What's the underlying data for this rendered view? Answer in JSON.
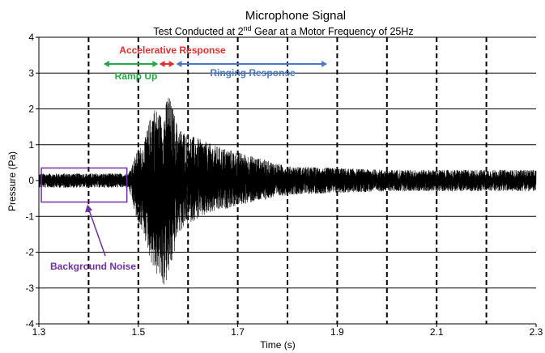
{
  "chart_data": {
    "type": "line",
    "title": "Microphone Signal",
    "subtitle_parts": [
      "Test Conducted at 2",
      "nd",
      " Gear at a Motor Frequency of 25Hz"
    ],
    "xlabel": "Time (s)",
    "ylabel": "Pressure (Pa)",
    "xlim": [
      1.3,
      2.3
    ],
    "ylim": [
      -4,
      4
    ],
    "x_ticks": [
      1.3,
      1.5,
      1.7,
      1.9,
      2.1,
      2.3
    ],
    "x_tick_labels": [
      "1.3",
      "1.5",
      "1.7",
      "1.9",
      "2.1",
      "2.3"
    ],
    "y_ticks": [
      4,
      3,
      2,
      1,
      0,
      -1,
      -2,
      -3,
      -4
    ],
    "y_tick_labels": [
      "4",
      "3",
      "2",
      "1",
      "0",
      "-1",
      "-2",
      "-3",
      "-4"
    ],
    "vertical_gridlines": [
      1.4,
      1.5,
      1.6,
      1.7,
      1.8,
      1.9,
      2.0,
      2.1,
      2.2
    ],
    "grid": true,
    "series": [
      {
        "color": "#000000",
        "envelope": {
          "x": [
            1.3,
            1.48,
            1.5,
            1.51,
            1.53,
            1.55,
            1.56,
            1.57,
            1.58,
            1.6,
            1.65,
            1.7,
            1.8,
            1.9,
            2.0,
            2.1,
            2.2,
            2.3
          ],
          "upper": [
            0.2,
            0.2,
            0.9,
            1.0,
            2.1,
            1.8,
            2.5,
            2.0,
            1.5,
            1.3,
            1.0,
            0.8,
            0.4,
            0.35,
            0.3,
            0.3,
            0.3,
            0.3
          ],
          "lower": [
            -0.2,
            -0.2,
            -1.3,
            -1.5,
            -2.5,
            -3.0,
            -2.8,
            -2.2,
            -1.5,
            -1.2,
            -0.9,
            -0.7,
            -0.4,
            -0.35,
            -0.3,
            -0.3,
            -0.3,
            -0.3
          ]
        }
      }
    ],
    "annotations": {
      "accelerative": {
        "text": "Accelerative Response",
        "color": "#e03030",
        "x_start": 1.542,
        "x_end": 1.573
      },
      "ramp_up": {
        "text": "Ramp Up",
        "color": "#22aa44",
        "x_start": 1.43,
        "x_end": 1.54
      },
      "ringing": {
        "text": "Ringing Response",
        "color": "#4a78c8",
        "x_start": 1.576,
        "x_end": 1.88
      },
      "background_noise": {
        "text": "Background Noise",
        "color": "#7030a0",
        "box_x": [
          1.305,
          1.477
        ],
        "box_y": [
          -0.6,
          0.35
        ]
      }
    }
  }
}
